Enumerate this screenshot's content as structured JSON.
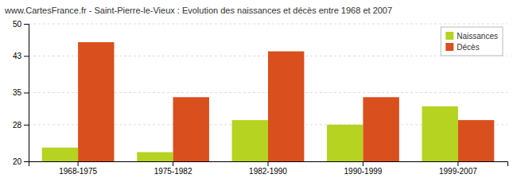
{
  "chart_data": {
    "type": "bar",
    "title": "www.CartesFrance.fr - Saint-Pierre-le-Vieux : Evolution des naissances et décès entre 1968 et 2007",
    "categories": [
      "1968-1975",
      "1975-1982",
      "1982-1990",
      "1990-1999",
      "1999-2007"
    ],
    "series": [
      {
        "name": "Naissances",
        "color": "#b5d320",
        "values": [
          23,
          22,
          29,
          28,
          32
        ]
      },
      {
        "name": "Décès",
        "color": "#d94f1e",
        "values": [
          46,
          34,
          44,
          34,
          29
        ]
      }
    ],
    "ylim": [
      20,
      50
    ],
    "yticks": [
      20,
      28,
      35,
      43,
      50
    ],
    "grid": true,
    "legend": "upper right"
  }
}
